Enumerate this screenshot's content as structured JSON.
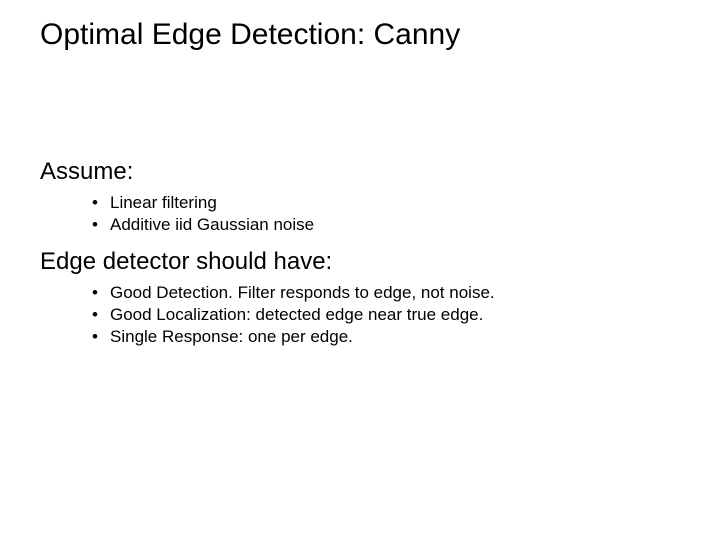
{
  "title": "Optimal Edge Detection: Canny",
  "section1": {
    "heading": "Assume:",
    "items": [
      "Linear filtering",
      "Additive iid Gaussian noise"
    ]
  },
  "section2": {
    "heading": "Edge detector should have:",
    "items": [
      "Good Detection.  Filter responds to edge, not noise.",
      "Good Localization: detected edge near true edge.",
      "Single Response: one per edge."
    ]
  },
  "style": {
    "background_color": "#ffffff",
    "text_color": "#000000",
    "title_fontsize": 30,
    "section_fontsize": 24,
    "bullet_fontsize": 17,
    "font_family": "Arial, Helvetica, sans-serif",
    "bullet_glyph": "•"
  }
}
